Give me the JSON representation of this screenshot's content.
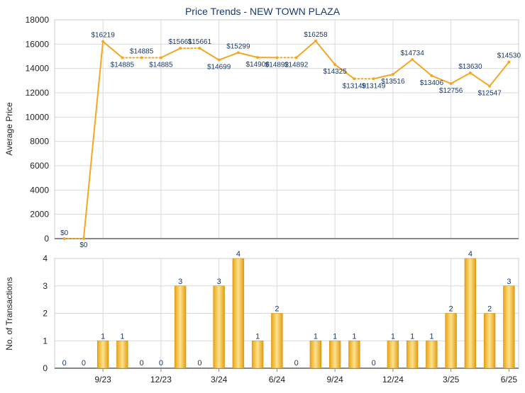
{
  "title": "Price Trends - NEW TOWN PLAZA",
  "colors": {
    "line": "#f5a623",
    "bar_light": "#fde08a",
    "bar_dark": "#e39d10",
    "label_text": "#1a3a6b",
    "grid": "#d9d9d9",
    "axis": "#888888"
  },
  "chart_data": [
    {
      "type": "line",
      "ylabel": "Average Price",
      "ylim": [
        0,
        18000
      ],
      "yticks": [
        0,
        2000,
        4000,
        6000,
        8000,
        10000,
        12000,
        14000,
        16000,
        18000
      ],
      "grid": true,
      "values": [
        0,
        0,
        16219,
        14885,
        14885,
        14885,
        15661,
        15661,
        14699,
        15299,
        14906,
        14892,
        14892,
        16258,
        14325,
        13149,
        13149,
        13516,
        14734,
        13406,
        12756,
        13630,
        12547,
        14530
      ],
      "point_labels": [
        "$0",
        "$0",
        "$16219",
        "$14885",
        "$14885",
        "$14885",
        "$15661",
        "$15661",
        "$14699",
        "$15299",
        "$14906",
        "$14892",
        "$14892",
        "$16258",
        "$14325",
        "$13149",
        "$13149",
        "$13516",
        "$14734",
        "$13406",
        "$12756",
        "$13630",
        "$12547",
        "$14530"
      ],
      "dotted_segments": [
        0,
        3,
        4,
        6,
        11,
        15
      ]
    },
    {
      "type": "bar",
      "ylabel": "No. of Transactions",
      "ylim": [
        0,
        4
      ],
      "yticks": [
        0,
        1,
        2,
        3,
        4
      ],
      "grid": true,
      "values": [
        0,
        0,
        1,
        1,
        0,
        0,
        3,
        0,
        3,
        4,
        1,
        2,
        0,
        1,
        1,
        1,
        0,
        1,
        1,
        1,
        2,
        4,
        2,
        3
      ],
      "x_tick_labels": [
        {
          "index": 2,
          "label": "9/23"
        },
        {
          "index": 5,
          "label": "12/23"
        },
        {
          "index": 8,
          "label": "3/24"
        },
        {
          "index": 11,
          "label": "6/24"
        },
        {
          "index": 14,
          "label": "9/24"
        },
        {
          "index": 17,
          "label": "12/24"
        },
        {
          "index": 20,
          "label": "3/25"
        },
        {
          "index": 23,
          "label": "6/25"
        }
      ]
    }
  ]
}
